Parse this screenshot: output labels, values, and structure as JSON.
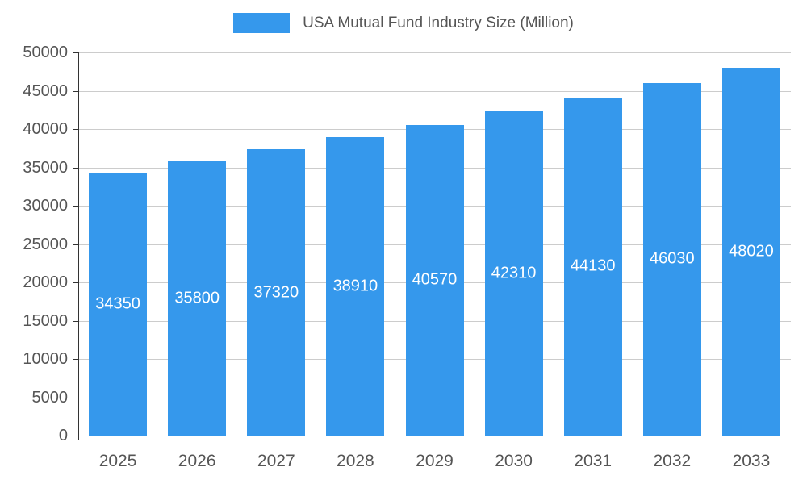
{
  "chart_data": {
    "type": "bar",
    "title": "USA Mutual Fund Industry Size (Million)",
    "categories": [
      "2025",
      "2026",
      "2027",
      "2028",
      "2029",
      "2030",
      "2031",
      "2032",
      "2033"
    ],
    "values": [
      34350,
      35800,
      37320,
      38910,
      40570,
      42310,
      44130,
      46030,
      48020
    ],
    "value_labels": [
      "34350",
      "35800",
      "37320",
      "38910",
      "40570",
      "42310",
      "44130",
      "46030",
      "48020"
    ],
    "ylim": [
      0,
      50000
    ],
    "ytick_step": 5000,
    "yticks": [
      0,
      5000,
      10000,
      15000,
      20000,
      25000,
      30000,
      35000,
      40000,
      45000,
      50000
    ],
    "grid": true,
    "legend_position": "top",
    "bar_color": "#3598EC",
    "bar_label_color": "#ffffff",
    "axis_text_color": "#555555",
    "gridline_color": "#cccccc",
    "axis_line_color": "#333333"
  }
}
